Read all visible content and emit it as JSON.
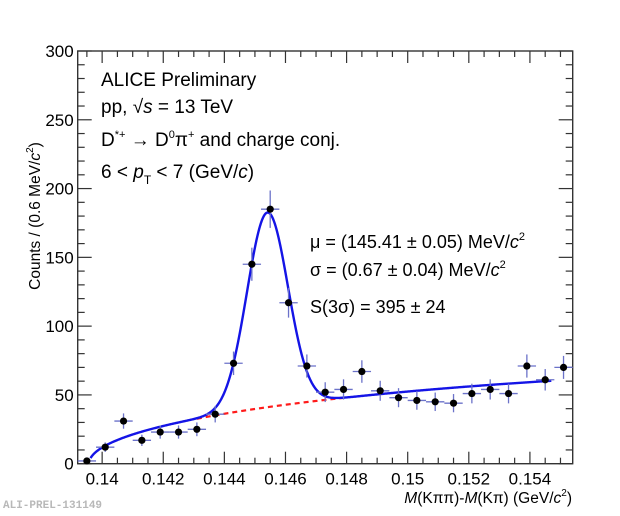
{
  "footer_id": "ALI-PREL-131149",
  "chart_data": {
    "type": "scatter",
    "title": "",
    "xlabel": "M(Kππ)-M(Kπ) (GeV/c²)",
    "xlabel_parts": {
      "m1": "M",
      "p1": "(Kππ)-",
      "m2": "M",
      "p2": "(Kπ) (GeV/",
      "c": "c",
      "sup": "2",
      "close": ")"
    },
    "ylabel": "Counts / (0.6 MeV/c²)",
    "ylabel_parts": {
      "main": "Counts / (0.6 MeV/",
      "c": "c",
      "sup": "2",
      "close": ")"
    },
    "xlim": [
      0.1392,
      0.1554
    ],
    "ylim": [
      0,
      300
    ],
    "xticks": [
      0.14,
      0.142,
      0.144,
      0.146,
      0.148,
      0.15,
      0.152,
      0.154
    ],
    "xtick_labels": [
      "0.14",
      "0.142",
      "0.144",
      "0.146",
      "0.148",
      "0.15",
      "0.152",
      "0.154"
    ],
    "yticks": [
      0,
      50,
      100,
      150,
      200,
      250,
      300
    ],
    "ytick_labels": [
      "0",
      "50",
      "100",
      "150",
      "200",
      "250",
      "300"
    ],
    "grid": false,
    "bin_width": 0.0006,
    "series": [
      {
        "name": "data",
        "marker": "filled-circle",
        "marker_color": "#000000",
        "errorbar_color": "#6b72c9",
        "x": [
          0.1395,
          0.1401,
          0.1407,
          0.1413,
          0.1419,
          0.1425,
          0.1431,
          0.1437,
          0.1443,
          0.1449,
          0.1455,
          0.1461,
          0.1467,
          0.1473,
          0.1479,
          0.1485,
          0.1491,
          0.1497,
          0.1503,
          0.1509,
          0.1515,
          0.1521,
          0.1527,
          0.1533,
          0.1539,
          0.1545,
          0.1551
        ],
        "y": [
          2,
          12,
          31,
          17,
          23,
          23,
          25,
          36,
          73,
          145,
          185,
          117,
          71,
          52,
          54,
          67,
          53,
          48,
          46,
          45,
          44,
          51,
          54,
          51,
          71,
          61,
          70
        ]
      },
      {
        "name": "total fit (signal + background)",
        "type": "line",
        "color": "#1414e6",
        "function": "gauss + a*sqrt(x-m_pi)*exp(b*(x-m_pi))",
        "params": {
          "mean": 0.14541,
          "sigma": 0.00067,
          "signal_per_bin_peak": 141.5,
          "a": 570,
          "b": -10,
          "m_pi": 0.13957
        },
        "x_range": [
          0.13962,
          0.1547
        ]
      },
      {
        "name": "background",
        "type": "line",
        "style": "dashed",
        "color": "#ff1a1a",
        "function": "a*sqrt(x-m_pi)*exp(b*(x-m_pi))",
        "x_range": [
          0.1431,
          0.1479
        ]
      }
    ],
    "annotations": {
      "experiment": "ALICE Preliminary",
      "system": {
        "pre": "pp, ",
        "sqrt": "√",
        "s": "s",
        "post": " = 13 TeV"
      },
      "decay": {
        "D": "D",
        "dsup": "*+",
        "arrow": " → D",
        "zero": "0",
        "pi": "π",
        "plus": "+",
        "post": " and charge conj."
      },
      "pt": {
        "pre": "6 < ",
        "p": "p",
        "sub": "T",
        "post": " < 7 (GeV/",
        "c": "c",
        "close": ")"
      },
      "mu": {
        "pre": "μ = (145.41 ± 0.05) MeV/",
        "c": "c",
        "sup": "2"
      },
      "sigma": {
        "pre": "σ = (0.67 ± 0.04) MeV/",
        "c": "c",
        "sup": "2"
      },
      "signal": "S(3σ) = 395 ± 24"
    }
  }
}
